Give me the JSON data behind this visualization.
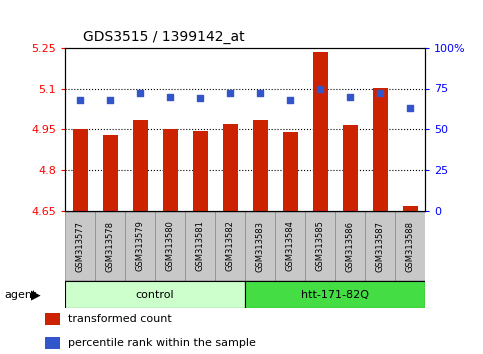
{
  "title": "GDS3515 / 1399142_at",
  "samples": [
    "GSM313577",
    "GSM313578",
    "GSM313579",
    "GSM313580",
    "GSM313581",
    "GSM313582",
    "GSM313583",
    "GSM313584",
    "GSM313585",
    "GSM313586",
    "GSM313587",
    "GSM313588"
  ],
  "bar_values": [
    4.95,
    4.928,
    4.985,
    4.95,
    4.943,
    4.968,
    4.985,
    4.938,
    5.235,
    4.967,
    5.103,
    4.668
  ],
  "dot_values_pct": [
    68,
    68,
    72,
    70,
    69,
    72,
    72,
    68,
    75,
    70,
    72,
    63
  ],
  "ymin": 4.65,
  "ymax": 5.25,
  "yticks": [
    4.65,
    4.8,
    4.95,
    5.1,
    5.25
  ],
  "ytick_labels": [
    "4.65",
    "4.8",
    "4.95",
    "5.1",
    "5.25"
  ],
  "right_yticks_pct": [
    0,
    25,
    50,
    75,
    100
  ],
  "right_ytick_labels": [
    "0",
    "25",
    "50",
    "75",
    "100%"
  ],
  "bar_color": "#cc2200",
  "dot_color": "#3355cc",
  "control_color": "#ccffcc",
  "htt_color": "#44dd44",
  "control_samples": 6,
  "htt_samples": 6,
  "agent_label": "agent",
  "control_label": "control",
  "htt_label": "htt-171-82Q",
  "legend_bar_label": "transformed count",
  "legend_dot_label": "percentile rank within the sample",
  "bar_width": 0.5,
  "title_fontsize": 10,
  "axis_fontsize": 8,
  "label_fontsize": 6,
  "legend_fontsize": 8
}
